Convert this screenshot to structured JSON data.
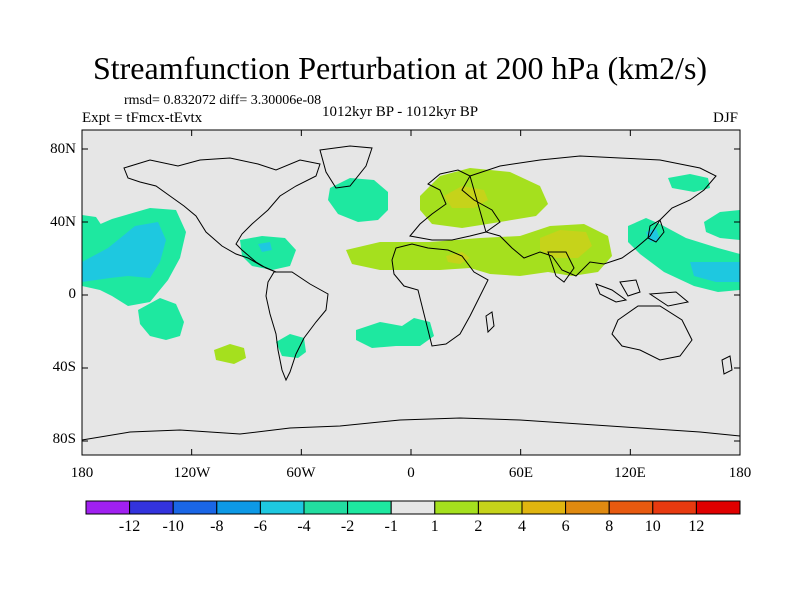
{
  "title": "Streamfunction Perturbation at 200 hPa (km2/s)",
  "stats": "rmsd= 0.832072 diff= 3.30006e-08",
  "experiment": "Expt = tFmcx-tEvtx",
  "period": "1012kyr BP - 1012kyr BP",
  "season": "DJF",
  "lat_labels": [
    "80N",
    "40N",
    "0",
    "40S",
    "80S"
  ],
  "lon_labels": [
    "180",
    "120W",
    "60W",
    "0",
    "60E",
    "120E",
    "180"
  ],
  "colorbar": {
    "labels": [
      "-12",
      "-10",
      "-8",
      "-6",
      "-4",
      "-2",
      "-1",
      "1",
      "2",
      "4",
      "6",
      "8",
      "10",
      "12"
    ],
    "colors": [
      "#a020f0",
      "#3333dd",
      "#1a66e6",
      "#0d99e6",
      "#1ec8e0",
      "#22dda0",
      "#1ee8a0",
      "#e6e6e6",
      "#a5e01e",
      "#c6d31a",
      "#e0b510",
      "#e08a10",
      "#e85a10",
      "#e83a10",
      "#e00000"
    ]
  },
  "map_colors": {
    "background": "#e6e6e6",
    "neg2": "#1ee8a0",
    "neg4": "#1ec8e0",
    "pos2": "#a5e01e",
    "pos4": "#c6d31a"
  }
}
